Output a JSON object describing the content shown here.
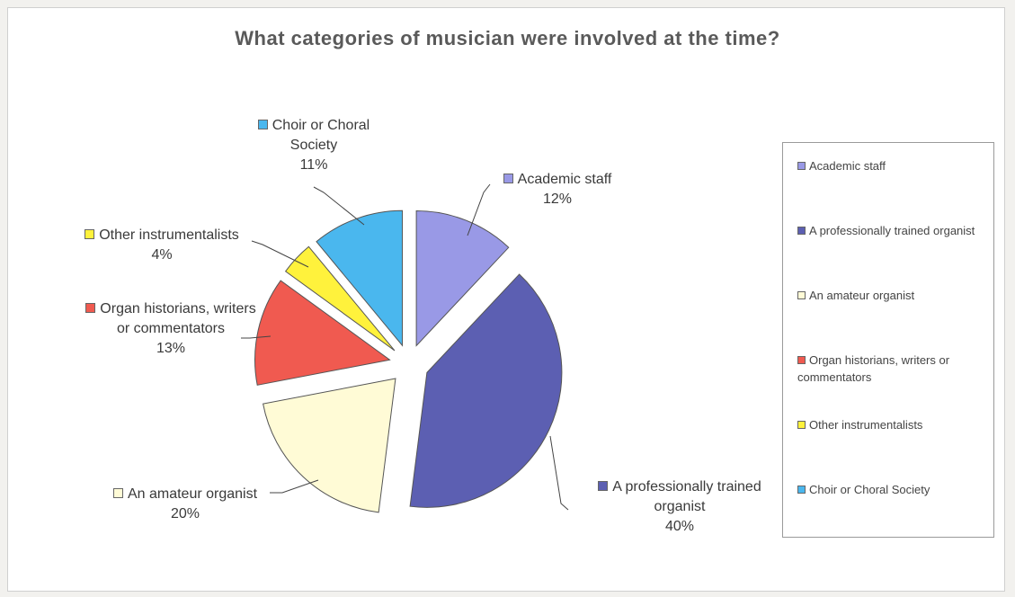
{
  "chart_data": {
    "type": "pie",
    "title": "What categories of musician were involved at the time?",
    "legend_position": "right",
    "slices": [
      {
        "label": "Academic staff",
        "value": 12,
        "value_label": "12%",
        "color": "#9999e6",
        "exploded": true
      },
      {
        "label": "A professionally trained organist",
        "value": 40,
        "value_label": "40%",
        "color": "#5c5fb2",
        "exploded": true
      },
      {
        "label": "An amateur organist",
        "value": 20,
        "value_label": "20%",
        "color": "#fffbd6",
        "exploded": true
      },
      {
        "label": "Organ historians, writers or commentators",
        "value": 13,
        "value_label": "13%",
        "color": "#f05a50",
        "exploded": true
      },
      {
        "label": "Other instrumentalists",
        "value": 4,
        "value_label": "4%",
        "color": "#fff23c",
        "exploded": true
      },
      {
        "label": "Choir or Choral Society",
        "value": 11,
        "value_label": "11%",
        "color": "#4ab7ee",
        "exploded": true
      }
    ]
  }
}
